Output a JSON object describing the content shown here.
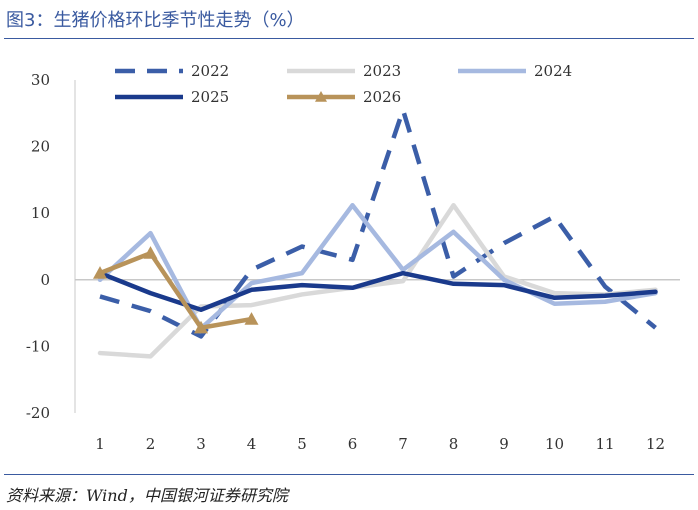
{
  "header": {
    "title": "图3：生猪价格环比季节性走势（%）"
  },
  "footer": {
    "source": "资料来源：Wind，中国银河证券研究院"
  },
  "chart_data": {
    "type": "line",
    "x": [
      1,
      2,
      3,
      4,
      5,
      6,
      7,
      8,
      9,
      10,
      11,
      12
    ],
    "x_tick_labels": [
      "1",
      "2",
      "3",
      "4",
      "5",
      "6",
      "7",
      "8",
      "9",
      "10",
      "11",
      "12"
    ],
    "y_tick_labels": [
      "30",
      "20",
      "10",
      "0",
      "-10",
      "-20"
    ],
    "ylim": [
      -20,
      30
    ],
    "y_ticks": [
      30,
      20,
      10,
      0,
      -10,
      -20
    ],
    "grid": false,
    "legend_position": "top",
    "series": [
      {
        "name": "2022",
        "color": "#3b5ea8",
        "style": "dashed",
        "values": [
          -2.5,
          -4.7,
          -8.5,
          1.5,
          5.0,
          3.0,
          25.5,
          0.5,
          5.5,
          9.5,
          -1.0,
          -7.2
        ]
      },
      {
        "name": "2023",
        "color": "#d9d9d9",
        "style": "solid",
        "values": [
          -11.0,
          -11.5,
          -4.0,
          -3.8,
          -2.2,
          -1.2,
          -0.2,
          11.2,
          0.5,
          -2.0,
          -2.2,
          -1.5
        ]
      },
      {
        "name": "2024",
        "color": "#a6b9e0",
        "style": "solid",
        "values": [
          0.0,
          7.0,
          -7.3,
          -0.5,
          1.0,
          11.2,
          1.5,
          7.2,
          0.0,
          -3.6,
          -3.3,
          -2.0
        ]
      },
      {
        "name": "2025",
        "color": "#1a3a8c",
        "style": "solid",
        "values": [
          1.0,
          -2.0,
          -4.5,
          -1.5,
          -0.8,
          -1.2,
          1.0,
          -0.6,
          -0.8,
          -2.7,
          -2.4,
          -1.8
        ]
      },
      {
        "name": "2026",
        "color": "#b8935a",
        "style": "solid",
        "marker": "triangle",
        "values": [
          1.0,
          4.0,
          -7.2,
          -5.9,
          null,
          null,
          null,
          null,
          null,
          null,
          null,
          null
        ]
      }
    ]
  }
}
